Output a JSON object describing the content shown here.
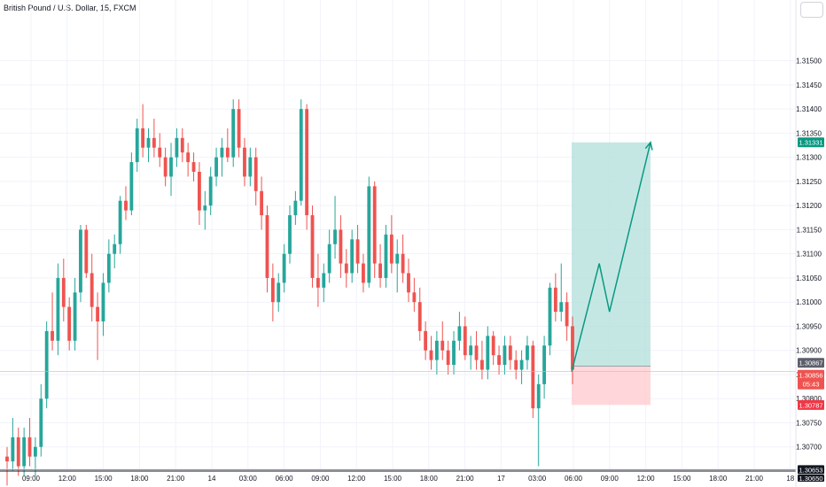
{
  "header": {
    "title": "British Pound / U.S. Dollar, 15, FXCM"
  },
  "colors": {
    "up": "#26a69a",
    "down": "#ef5350",
    "axis_text": "#131722",
    "target_zone": "#b2dfdb",
    "stop_zone": "#ffcdd2",
    "current_price_bg": "#ef5350",
    "target_label_bg": "#089981",
    "stop_label_bg": "#f23645"
  },
  "chart_data": {
    "type": "candlestick",
    "symbol": "British Pound / U.S. Dollar",
    "interval": "15",
    "source": "FXCM",
    "ylim": [
      1.3065,
      1.3158
    ],
    "y_ticks": [
      "1.31500",
      "1.31450",
      "1.31400",
      "1.31350",
      "1.31300",
      "1.31250",
      "1.31200",
      "1.31150",
      "1.31100",
      "1.31050",
      "1.31000",
      "1.30950",
      "1.30900",
      "1.30850",
      "1.30800",
      "1.30750",
      "1.30700"
    ],
    "x_ticks": [
      "09:00",
      "12:00",
      "15:00",
      "18:00",
      "21:00",
      "14",
      "03:00",
      "06:00",
      "09:00",
      "12:00",
      "15:00",
      "18:00",
      "21:00",
      "17",
      "03:00",
      "06:00",
      "09:00",
      "12:00",
      "15:00",
      "18:00",
      "21:00",
      "18"
    ],
    "candles": [
      [
        1.3068,
        1.307,
        1.3062,
        1.3067
      ],
      [
        1.3067,
        1.3076,
        1.3065,
        1.3072
      ],
      [
        1.3072,
        1.3074,
        1.3064,
        1.3066
      ],
      [
        1.3066,
        1.3074,
        1.3064,
        1.3072
      ],
      [
        1.3072,
        1.3076,
        1.3066,
        1.3068
      ],
      [
        1.3068,
        1.3072,
        1.3064,
        1.307
      ],
      [
        1.307,
        1.3083,
        1.3068,
        1.308
      ],
      [
        1.308,
        1.3096,
        1.3078,
        1.3094
      ],
      [
        1.3094,
        1.3102,
        1.309,
        1.3092
      ],
      [
        1.3092,
        1.3108,
        1.3089,
        1.3105
      ],
      [
        1.3105,
        1.3109,
        1.3096,
        1.3099
      ],
      [
        1.3099,
        1.3101,
        1.309,
        1.3092
      ],
      [
        1.3092,
        1.3105,
        1.309,
        1.3102
      ],
      [
        1.3102,
        1.3116,
        1.31,
        1.3115
      ],
      [
        1.3115,
        1.3116,
        1.3105,
        1.3106
      ],
      [
        1.3106,
        1.311,
        1.3096,
        1.3099
      ],
      [
        1.3099,
        1.3102,
        1.3088,
        1.3096
      ],
      [
        1.3096,
        1.3106,
        1.3093,
        1.3104
      ],
      [
        1.3104,
        1.3113,
        1.3102,
        1.311
      ],
      [
        1.311,
        1.3114,
        1.3107,
        1.3112
      ],
      [
        1.3112,
        1.3122,
        1.311,
        1.3121
      ],
      [
        1.3121,
        1.3124,
        1.3117,
        1.3119
      ],
      [
        1.3119,
        1.3131,
        1.3118,
        1.3129
      ],
      [
        1.3129,
        1.3138,
        1.3127,
        1.3136
      ],
      [
        1.3136,
        1.3141,
        1.313,
        1.3132
      ],
      [
        1.3132,
        1.3136,
        1.3129,
        1.3134
      ],
      [
        1.3134,
        1.3138,
        1.313,
        1.3132
      ],
      [
        1.3132,
        1.3135,
        1.3128,
        1.313
      ],
      [
        1.313,
        1.3132,
        1.3124,
        1.3126
      ],
      [
        1.3126,
        1.3133,
        1.3122,
        1.313
      ],
      [
        1.313,
        1.3136,
        1.3128,
        1.3134
      ],
      [
        1.3134,
        1.3136,
        1.3129,
        1.3131
      ],
      [
        1.3131,
        1.3133,
        1.3126,
        1.3129
      ],
      [
        1.3129,
        1.3131,
        1.3125,
        1.3127
      ],
      [
        1.3127,
        1.3129,
        1.3116,
        1.3119
      ],
      [
        1.3119,
        1.3123,
        1.3115,
        1.312
      ],
      [
        1.312,
        1.3128,
        1.3118,
        1.3126
      ],
      [
        1.3126,
        1.3132,
        1.3124,
        1.313
      ],
      [
        1.313,
        1.3134,
        1.3126,
        1.3132
      ],
      [
        1.3132,
        1.3136,
        1.3129,
        1.313
      ],
      [
        1.313,
        1.3142,
        1.3128,
        1.314
      ],
      [
        1.314,
        1.3142,
        1.313,
        1.3132
      ],
      [
        1.3132,
        1.3134,
        1.3124,
        1.3126
      ],
      [
        1.3126,
        1.3132,
        1.3124,
        1.313
      ],
      [
        1.313,
        1.3132,
        1.312,
        1.3123
      ],
      [
        1.3123,
        1.3126,
        1.3115,
        1.3118
      ],
      [
        1.3118,
        1.312,
        1.3102,
        1.3105
      ],
      [
        1.3105,
        1.3108,
        1.3096,
        1.31
      ],
      [
        1.31,
        1.3106,
        1.3098,
        1.3104
      ],
      [
        1.3104,
        1.3112,
        1.3102,
        1.311
      ],
      [
        1.311,
        1.312,
        1.3108,
        1.3118
      ],
      [
        1.3118,
        1.3123,
        1.3116,
        1.3121
      ],
      [
        1.3121,
        1.3142,
        1.312,
        1.314
      ],
      [
        1.314,
        1.3141,
        1.3115,
        1.3118
      ],
      [
        1.3118,
        1.312,
        1.3103,
        1.3105
      ],
      [
        1.3105,
        1.311,
        1.3099,
        1.3103
      ],
      [
        1.3103,
        1.3108,
        1.31,
        1.3106
      ],
      [
        1.3106,
        1.3115,
        1.3104,
        1.3112
      ],
      [
        1.3112,
        1.3122,
        1.3109,
        1.3115
      ],
      [
        1.3115,
        1.3118,
        1.3105,
        1.3108
      ],
      [
        1.3108,
        1.3111,
        1.3103,
        1.3106
      ],
      [
        1.3106,
        1.3115,
        1.3104,
        1.3113
      ],
      [
        1.3113,
        1.3116,
        1.3106,
        1.3108
      ],
      [
        1.3108,
        1.311,
        1.3102,
        1.3104
      ],
      [
        1.3104,
        1.3126,
        1.3103,
        1.3124
      ],
      [
        1.3124,
        1.3125,
        1.3105,
        1.3108
      ],
      [
        1.3108,
        1.3112,
        1.3103,
        1.3105
      ],
      [
        1.3105,
        1.3116,
        1.3103,
        1.3114
      ],
      [
        1.3114,
        1.3118,
        1.3106,
        1.3108
      ],
      [
        1.3108,
        1.3113,
        1.3102,
        1.311
      ],
      [
        1.311,
        1.3114,
        1.3104,
        1.3106
      ],
      [
        1.3106,
        1.3109,
        1.31,
        1.3102
      ],
      [
        1.3102,
        1.3105,
        1.3098,
        1.31
      ],
      [
        1.31,
        1.3103,
        1.3092,
        1.3094
      ],
      [
        1.3094,
        1.3096,
        1.3088,
        1.309
      ],
      [
        1.309,
        1.3093,
        1.3086,
        1.3088
      ],
      [
        1.3088,
        1.3094,
        1.3085,
        1.3092
      ],
      [
        1.3092,
        1.3096,
        1.3088,
        1.309
      ],
      [
        1.309,
        1.3092,
        1.3085,
        1.3087
      ],
      [
        1.3087,
        1.3094,
        1.3085,
        1.3092
      ],
      [
        1.3092,
        1.3098,
        1.309,
        1.3095
      ],
      [
        1.3095,
        1.3097,
        1.3088,
        1.3089
      ],
      [
        1.3089,
        1.3093,
        1.3086,
        1.3091
      ],
      [
        1.3091,
        1.3094,
        1.3086,
        1.3088
      ],
      [
        1.3088,
        1.3092,
        1.3084,
        1.3086
      ],
      [
        1.3086,
        1.3095,
        1.3084,
        1.3093
      ],
      [
        1.3093,
        1.3094,
        1.3087,
        1.3089
      ],
      [
        1.3089,
        1.3091,
        1.3085,
        1.3087
      ],
      [
        1.3087,
        1.3093,
        1.3085,
        1.3091
      ],
      [
        1.3091,
        1.3093,
        1.3086,
        1.3088
      ],
      [
        1.3088,
        1.309,
        1.3084,
        1.3086
      ],
      [
        1.3086,
        1.309,
        1.3083,
        1.3088
      ],
      [
        1.3088,
        1.3093,
        1.3086,
        1.3091
      ],
      [
        1.3091,
        1.3092,
        1.3076,
        1.3078
      ],
      [
        1.3078,
        1.3085,
        1.3066,
        1.3083
      ],
      [
        1.3083,
        1.3093,
        1.308,
        1.3091
      ],
      [
        1.3091,
        1.3104,
        1.3089,
        1.3103
      ],
      [
        1.3103,
        1.3106,
        1.3096,
        1.3098
      ],
      [
        1.3098,
        1.3108,
        1.3096,
        1.31
      ],
      [
        1.31,
        1.3102,
        1.3092,
        1.3095
      ],
      [
        1.3095,
        1.3097,
        1.3083,
        1.3086
      ]
    ],
    "position": {
      "type": "long",
      "entry": 1.30867,
      "target": 1.31331,
      "stop": 1.30787,
      "projected_path": [
        [
          0,
          1.30856
        ],
        [
          0.35,
          1.3108
        ],
        [
          0.48,
          1.3098
        ],
        [
          1.0,
          1.31331
        ]
      ]
    },
    "price_labels": {
      "target": "1.31331",
      "entry": "1.30867",
      "current": "1.30856",
      "countdown": "05:43",
      "stop": "1.30787",
      "hline_a": "1.30653",
      "hline_b": "1.30650"
    }
  }
}
